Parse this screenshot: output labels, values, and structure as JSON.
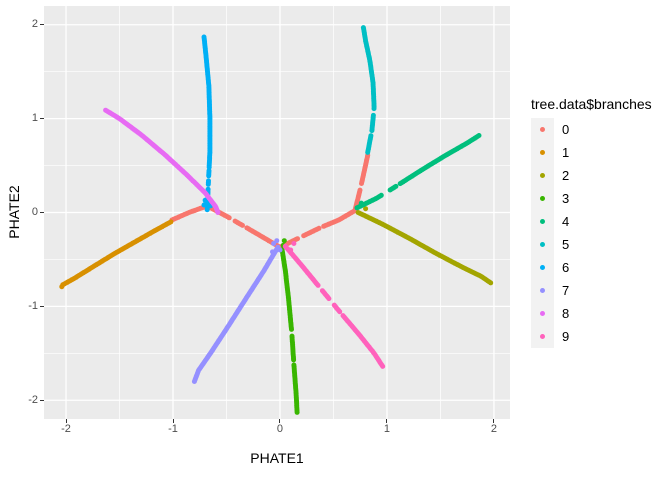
{
  "legend": {
    "title": "tree.data$branches"
  },
  "colors": {
    "panel_bg": "#EBEBEB",
    "gridline": "#FFFFFF",
    "legend_key_bg": "#F2F2F2",
    "axis_tick": "#333333",
    "axis_tick_label": "#4D4D4D",
    "axis_title": "#000000"
  },
  "chart_data": {
    "type": "scatter",
    "xlabel": "PHATE1",
    "ylabel": "PHATE2",
    "legend_title": "tree.data$branches",
    "legend_position": "right",
    "grid": true,
    "xlim": [
      -2.206,
      2.15
    ],
    "ylim": [
      -2.2,
      2.2
    ],
    "x_ticks": {
      "values": [
        -2,
        -1,
        0,
        1,
        2
      ],
      "labels": [
        "-2",
        "-1",
        "0",
        "1",
        "2"
      ]
    },
    "y_ticks": {
      "values": [
        -2,
        -1,
        0,
        1,
        2
      ],
      "labels": [
        "-2",
        "-1",
        "0",
        "1",
        "2"
      ]
    },
    "x_minor": [
      -1.5,
      -0.5,
      0.5,
      1.5
    ],
    "y_minor": [
      -1.5,
      -0.5,
      0.5,
      1.5
    ],
    "series": [
      {
        "name": "0",
        "color": "#F8766D",
        "path": [
          [
            -1.01,
            -0.08
          ],
          [
            -0.85,
            0.0
          ],
          [
            -0.68,
            0.07
          ],
          [
            -0.5,
            -0.04
          ],
          [
            -0.3,
            -0.17
          ],
          [
            -0.12,
            -0.29
          ],
          [
            0.0,
            -0.37
          ],
          [
            0.18,
            -0.27
          ],
          [
            0.38,
            -0.16
          ],
          [
            0.55,
            -0.08
          ],
          [
            0.7,
            0.02
          ],
          [
            0.74,
            0.2
          ],
          [
            0.78,
            0.4
          ],
          [
            0.82,
            0.61
          ]
        ],
        "gaps": [
          [
            0.245,
            0.262
          ],
          [
            0.3,
            0.315
          ],
          [
            0.545,
            0.562
          ],
          [
            0.63,
            0.648
          ],
          [
            0.87,
            0.885
          ]
        ],
        "extra": [
          [
            -0.64,
            0.1
          ]
        ]
      },
      {
        "name": "1",
        "color": "#D89000",
        "path": [
          [
            -2.03,
            -0.77
          ],
          [
            -1.92,
            -0.7
          ],
          [
            -1.75,
            -0.58
          ],
          [
            -1.55,
            -0.44
          ],
          [
            -1.35,
            -0.31
          ],
          [
            -1.18,
            -0.2
          ],
          [
            -1.02,
            -0.1
          ]
        ],
        "gaps": [],
        "extra": [
          [
            -2.04,
            -0.79
          ]
        ]
      },
      {
        "name": "2",
        "color": "#A3A500",
        "path": [
          [
            0.73,
            0.0
          ],
          [
            0.95,
            -0.12
          ],
          [
            1.2,
            -0.27
          ],
          [
            1.45,
            -0.43
          ],
          [
            1.7,
            -0.58
          ],
          [
            1.88,
            -0.68
          ],
          [
            1.97,
            -0.75
          ]
        ],
        "gaps": [],
        "extra": [
          [
            0.8,
            0.04
          ]
        ]
      },
      {
        "name": "3",
        "color": "#39B600",
        "path": [
          [
            0.02,
            -0.4
          ],
          [
            0.05,
            -0.62
          ],
          [
            0.08,
            -0.92
          ],
          [
            0.11,
            -1.28
          ],
          [
            0.13,
            -1.62
          ],
          [
            0.15,
            -1.92
          ],
          [
            0.16,
            -2.13
          ]
        ],
        "gaps": [
          [
            0.5,
            0.53
          ],
          [
            0.68,
            0.7
          ]
        ],
        "extra": [
          [
            0.04,
            -0.3
          ],
          [
            0.03,
            -0.35
          ]
        ]
      },
      {
        "name": "4",
        "color": "#00BF7D",
        "path": [
          [
            0.72,
            0.05
          ],
          [
            0.9,
            0.15
          ],
          [
            1.1,
            0.29
          ],
          [
            1.32,
            0.45
          ],
          [
            1.55,
            0.61
          ],
          [
            1.75,
            0.74
          ],
          [
            1.86,
            0.82
          ]
        ],
        "gaps": [
          [
            0.2,
            0.26
          ],
          [
            0.32,
            0.34
          ]
        ],
        "extra": [
          [
            0.76,
            0.1
          ]
        ]
      },
      {
        "name": "5",
        "color": "#00BFC4",
        "path": [
          [
            0.82,
            0.64
          ],
          [
            0.86,
            0.88
          ],
          [
            0.88,
            1.12
          ],
          [
            0.87,
            1.38
          ],
          [
            0.84,
            1.62
          ],
          [
            0.8,
            1.83
          ],
          [
            0.78,
            1.97
          ]
        ],
        "gaps": [
          [
            0.14,
            0.165
          ],
          [
            0.3,
            0.345
          ]
        ],
        "extra": []
      },
      {
        "name": "6",
        "color": "#00B0F6",
        "path": [
          [
            -0.68,
            0.03
          ],
          [
            -0.67,
            0.3
          ],
          [
            -0.655,
            0.65
          ],
          [
            -0.655,
            1.0
          ],
          [
            -0.665,
            1.35
          ],
          [
            -0.69,
            1.65
          ],
          [
            -0.71,
            1.87
          ]
        ],
        "gaps": [
          [
            0.07,
            0.085
          ],
          [
            0.12,
            0.14
          ],
          [
            0.175,
            0.19
          ],
          [
            0.23,
            0.245
          ]
        ],
        "extra": [
          [
            -0.71,
            0.08
          ],
          [
            -0.65,
            0.07
          ],
          [
            -0.7,
            0.13
          ]
        ]
      },
      {
        "name": "7",
        "color": "#9590FF",
        "path": [
          [
            -0.02,
            -0.37
          ],
          [
            -0.15,
            -0.62
          ],
          [
            -0.32,
            -0.92
          ],
          [
            -0.5,
            -1.24
          ],
          [
            -0.65,
            -1.5
          ],
          [
            -0.76,
            -1.68
          ],
          [
            -0.8,
            -1.8
          ]
        ],
        "gaps": [],
        "extra": [
          [
            -0.06,
            -0.33
          ],
          [
            0.0,
            -0.4
          ],
          [
            -0.07,
            -0.42
          ],
          [
            -0.03,
            -0.3
          ]
        ]
      },
      {
        "name": "8",
        "color": "#E76BF3",
        "path": [
          [
            -1.63,
            1.09
          ],
          [
            -1.5,
            1.0
          ],
          [
            -1.3,
            0.83
          ],
          [
            -1.08,
            0.62
          ],
          [
            -0.87,
            0.4
          ],
          [
            -0.7,
            0.21
          ],
          [
            -0.6,
            0.06
          ],
          [
            -0.58,
            0.0
          ]
        ],
        "gaps": [],
        "extra": []
      },
      {
        "name": "9",
        "color": "#FF62BC",
        "path": [
          [
            0.05,
            -0.36
          ],
          [
            0.2,
            -0.56
          ],
          [
            0.38,
            -0.81
          ],
          [
            0.56,
            -1.06
          ],
          [
            0.74,
            -1.3
          ],
          [
            0.88,
            -1.5
          ],
          [
            0.96,
            -1.64
          ]
        ],
        "gaps": [
          [
            0.33,
            0.37
          ],
          [
            0.45,
            0.49
          ],
          [
            0.55,
            0.58
          ]
        ],
        "extra": [
          [
            0.13,
            -0.33
          ],
          [
            0.1,
            -0.4
          ]
        ]
      }
    ]
  }
}
